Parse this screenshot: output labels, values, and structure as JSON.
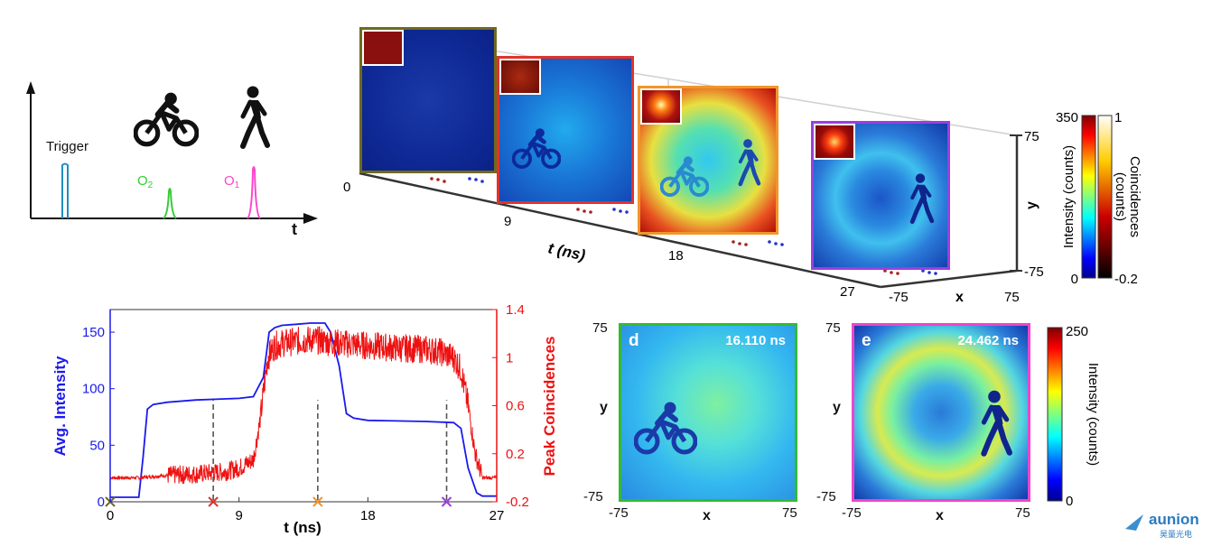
{
  "timing": {
    "trigger_label": "Trigger",
    "o2_label": "O",
    "o2_sub": "2",
    "o1_label": "O",
    "o1_sub": "1",
    "t_label": "t",
    "colors": {
      "trigger": "#1f8fbf",
      "o2": "#33cc33",
      "o1": "#ff44cc"
    }
  },
  "stack": {
    "frames": [
      {
        "border": "#6e6a1e"
      },
      {
        "border": "#e0332b"
      },
      {
        "border": "#f0962a"
      },
      {
        "border": "#9b3fe0"
      }
    ],
    "t_ticks": [
      "0",
      "9",
      "18",
      "27"
    ],
    "t_axis_label": "t (ns)",
    "x_ticks": [
      "-75",
      "75"
    ],
    "x_label": "x",
    "y_ticks": [
      "-75",
      "75"
    ],
    "y_label": "y"
  },
  "colorbar_top": {
    "intensity_label": "Intensity (counts)",
    "intensity_max": "350",
    "intensity_min": "0",
    "coinc_label_1": "Coincidences",
    "coinc_label_2": "(counts)",
    "coinc_max": "1",
    "coinc_min": "-0.2"
  },
  "panel_d": {
    "letter": "d",
    "time": "16.110 ns",
    "border": "#33bb33",
    "x_label": "x",
    "y_label": "y",
    "x_ticks": [
      "-75",
      "75"
    ],
    "y_ticks": [
      "75",
      "-75"
    ]
  },
  "panel_e": {
    "letter": "e",
    "time": "24.462 ns",
    "border": "#ee44cc",
    "x_label": "x",
    "y_label": "y",
    "x_ticks": [
      "-75",
      "75"
    ],
    "y_ticks": [
      "75",
      "-75"
    ]
  },
  "colorbar_bottom": {
    "label": "Intensity (counts)",
    "max": "250",
    "min": "0"
  },
  "logo": {
    "text": "aunion",
    "sub": "昊量光电"
  },
  "chart_data": {
    "type": "line",
    "xlabel": "t (ns)",
    "ylabel": "Avg. Intensity",
    "y2label": "Peak Coincidences",
    "xlim": [
      0,
      27
    ],
    "ylim": [
      0,
      170
    ],
    "y2lim": [
      -0.2,
      1.4
    ],
    "xticks": [
      "0",
      "9",
      "18",
      "27"
    ],
    "yticks": [
      "0",
      "50",
      "100",
      "150"
    ],
    "y2ticks": [
      "-0.2",
      "0.2",
      "0.6",
      "1",
      "1.4"
    ],
    "series": [
      {
        "color": "#1a1aee",
        "x": [
          0,
          2,
          2.3,
          2.6,
          3,
          4,
          6,
          8,
          9,
          10,
          10.7,
          11.1,
          11.5,
          12,
          13,
          14,
          15,
          15.4,
          16,
          16.5,
          17,
          18,
          20,
          22,
          24,
          24.5,
          25,
          25.6,
          26,
          27
        ],
        "values": [
          4,
          4,
          40,
          82,
          86,
          88,
          90,
          91,
          91.5,
          93,
          110,
          150,
          154,
          156,
          157,
          158,
          158,
          150,
          120,
          78,
          74,
          72,
          71.5,
          71,
          70,
          65,
          30,
          8,
          5,
          5
        ]
      },
      {
        "color": "#ee1111",
        "x": [
          0,
          2,
          4,
          6,
          8,
          9,
          10,
          10.5,
          11,
          11.5,
          12,
          14,
          16,
          18,
          20,
          22,
          23,
          24,
          24.5,
          25,
          25.5,
          26,
          27
        ],
        "values": [
          0.0,
          0.0,
          0.02,
          0.03,
          0.05,
          0.08,
          0.15,
          0.5,
          1.0,
          1.1,
          1.12,
          1.15,
          1.12,
          1.1,
          1.08,
          1.07,
          1.05,
          1.0,
          0.9,
          0.6,
          0.2,
          0.0,
          0.0
        ]
      }
    ],
    "vlines": [
      7.2,
      14.5,
      23.5
    ],
    "markers": [
      {
        "x": 0,
        "color": "#6e6a1e"
      },
      {
        "x": 7.2,
        "color": "#e0332b"
      },
      {
        "x": 14.5,
        "color": "#f0962a"
      },
      {
        "x": 23.5,
        "color": "#9b3fe0"
      }
    ]
  }
}
